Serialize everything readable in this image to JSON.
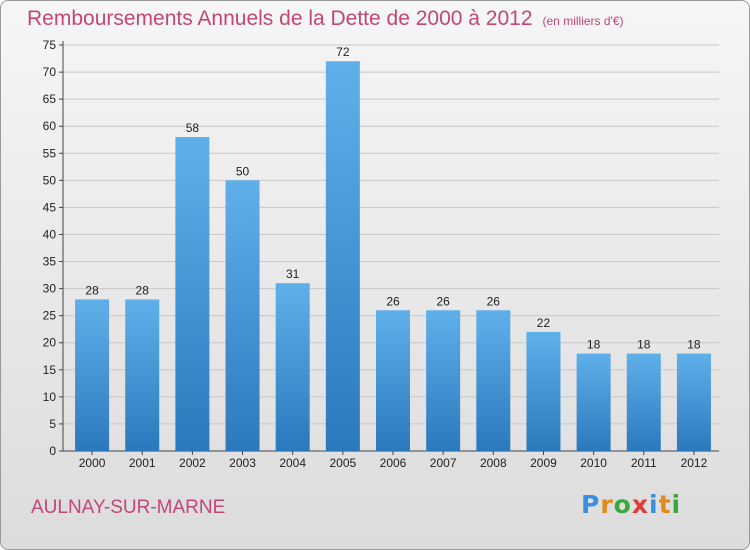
{
  "title": "Remboursements Annuels de la Dette de 2000 à 2012",
  "unit_note": "(en milliers d'€)",
  "city": "AULNAY-SUR-MARNE",
  "logo": {
    "text": "Proxiti",
    "letter_colors": [
      "#3a8ee0",
      "#e08a1a",
      "#3aa83a",
      "#e03a3a",
      "#3a8ee0",
      "#e08a1a",
      "#3aa83a"
    ]
  },
  "colors": {
    "bar": "#4a9fe0",
    "bar_light": "#5fb0ea",
    "bar_dark": "#2b79bd",
    "title": "#c24777"
  },
  "chart_data": {
    "type": "bar",
    "categories": [
      "2000",
      "2001",
      "2002",
      "2003",
      "2004",
      "2005",
      "2006",
      "2007",
      "2008",
      "2009",
      "2010",
      "2011",
      "2012"
    ],
    "values": [
      28,
      28,
      58,
      50,
      31,
      72,
      26,
      26,
      26,
      22,
      18,
      18,
      18
    ],
    "ylim": [
      0,
      75
    ],
    "yticks": [
      0,
      5,
      10,
      15,
      20,
      25,
      30,
      35,
      40,
      45,
      50,
      55,
      60,
      65,
      70,
      75
    ],
    "grid": true,
    "legend": "none"
  }
}
